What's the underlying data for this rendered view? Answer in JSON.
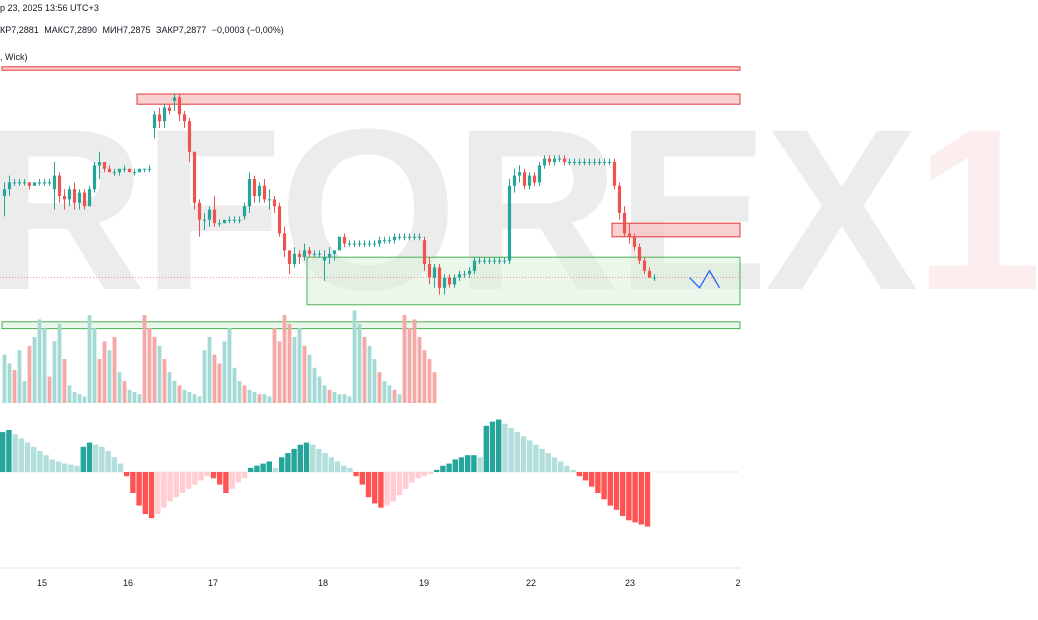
{
  "header": {
    "datetime": "р 23, 2025 13:56 UTC+3",
    "ohlc": [
      {
        "label": "КР",
        "value": "7,2881"
      },
      {
        "label": "МАКС",
        "value": "7,2890"
      },
      {
        "label": "МИН",
        "value": "7,2875"
      },
      {
        "label": "ЗАКР",
        "value": "7,2877"
      }
    ],
    "change": "−0,0003 (−0,00%)",
    "indicator_label": ", Wick)"
  },
  "watermark": {
    "text": "RFOREX",
    "accent": "1"
  },
  "colors": {
    "bull": "#26a69a",
    "bear": "#ef5350",
    "vol_bull": "#a5d9d4",
    "vol_bear": "#f4a9a7",
    "zone_red": "#f8c5c5",
    "zone_green": "#dff2df",
    "forecast": "#2962ff"
  },
  "chart_data": {
    "type": "candlestick",
    "x_axis_labels": [
      "15",
      "16",
      "17",
      "18",
      "19",
      "22",
      "23",
      "2"
    ],
    "grid": false,
    "price_range": [
      0,
      100
    ],
    "candles": [
      {
        "o": 60,
        "h": 64,
        "l": 54,
        "c": 62
      },
      {
        "o": 62,
        "h": 66,
        "l": 60,
        "c": 64
      },
      {
        "o": 64,
        "h": 65,
        "l": 63,
        "c": 64
      },
      {
        "o": 64,
        "h": 65,
        "l": 63,
        "c": 64
      },
      {
        "o": 64,
        "h": 65,
        "l": 63,
        "c": 64
      },
      {
        "o": 64,
        "h": 64,
        "l": 62,
        "c": 63
      },
      {
        "o": 63,
        "h": 64,
        "l": 63,
        "c": 64
      },
      {
        "o": 64,
        "h": 65,
        "l": 63,
        "c": 64
      },
      {
        "o": 64,
        "h": 65,
        "l": 63,
        "c": 64
      },
      {
        "o": 64,
        "h": 65,
        "l": 63,
        "c": 64
      },
      {
        "o": 62,
        "h": 70,
        "l": 56,
        "c": 66
      },
      {
        "o": 66,
        "h": 67,
        "l": 58,
        "c": 60
      },
      {
        "o": 60,
        "h": 62,
        "l": 56,
        "c": 59
      },
      {
        "o": 59,
        "h": 63,
        "l": 57,
        "c": 62
      },
      {
        "o": 62,
        "h": 64,
        "l": 56,
        "c": 58
      },
      {
        "o": 58,
        "h": 62,
        "l": 56,
        "c": 61
      },
      {
        "o": 61,
        "h": 62,
        "l": 56,
        "c": 57
      },
      {
        "o": 57,
        "h": 63,
        "l": 57,
        "c": 62
      },
      {
        "o": 62,
        "h": 70,
        "l": 61,
        "c": 69
      },
      {
        "o": 69,
        "h": 73,
        "l": 65,
        "c": 70
      },
      {
        "o": 70,
        "h": 70,
        "l": 67,
        "c": 68
      },
      {
        "o": 68,
        "h": 69,
        "l": 67,
        "c": 67
      },
      {
        "o": 67,
        "h": 68,
        "l": 66,
        "c": 67
      },
      {
        "o": 67,
        "h": 68,
        "l": 66,
        "c": 68
      },
      {
        "o": 68,
        "h": 69,
        "l": 67,
        "c": 68
      },
      {
        "o": 68,
        "h": 68,
        "l": 67,
        "c": 67
      },
      {
        "o": 67,
        "h": 68,
        "l": 66,
        "c": 67
      },
      {
        "o": 67,
        "h": 68,
        "l": 67,
        "c": 68
      },
      {
        "o": 68,
        "h": 68,
        "l": 67,
        "c": 68
      },
      {
        "o": 68,
        "h": 69,
        "l": 67,
        "c": 68
      },
      {
        "o": 80,
        "h": 85,
        "l": 77,
        "c": 84
      },
      {
        "o": 84,
        "h": 86,
        "l": 80,
        "c": 82
      },
      {
        "o": 82,
        "h": 87,
        "l": 80,
        "c": 86
      },
      {
        "o": 86,
        "h": 87,
        "l": 84,
        "c": 85
      },
      {
        "o": 88,
        "h": 90,
        "l": 85,
        "c": 89
      },
      {
        "o": 89,
        "h": 90,
        "l": 82,
        "c": 84
      },
      {
        "o": 84,
        "h": 85,
        "l": 80,
        "c": 82
      },
      {
        "o": 82,
        "h": 83,
        "l": 70,
        "c": 73
      },
      {
        "o": 73,
        "h": 73,
        "l": 56,
        "c": 58
      },
      {
        "o": 58,
        "h": 59,
        "l": 48,
        "c": 53
      },
      {
        "o": 53,
        "h": 55,
        "l": 50,
        "c": 53
      },
      {
        "o": 53,
        "h": 57,
        "l": 51,
        "c": 56
      },
      {
        "o": 56,
        "h": 60,
        "l": 51,
        "c": 52
      },
      {
        "o": 52,
        "h": 53,
        "l": 51,
        "c": 52
      },
      {
        "o": 52,
        "h": 53,
        "l": 52,
        "c": 53
      },
      {
        "o": 53,
        "h": 54,
        "l": 52,
        "c": 53
      },
      {
        "o": 53,
        "h": 54,
        "l": 52,
        "c": 53
      },
      {
        "o": 53,
        "h": 54,
        "l": 52,
        "c": 53
      },
      {
        "o": 54,
        "h": 58,
        "l": 53,
        "c": 57
      },
      {
        "o": 57,
        "h": 67,
        "l": 55,
        "c": 65
      },
      {
        "o": 65,
        "h": 66,
        "l": 58,
        "c": 60
      },
      {
        "o": 60,
        "h": 64,
        "l": 58,
        "c": 63
      },
      {
        "o": 63,
        "h": 65,
        "l": 58,
        "c": 59
      },
      {
        "o": 59,
        "h": 62,
        "l": 56,
        "c": 59
      },
      {
        "o": 59,
        "h": 60,
        "l": 55,
        "c": 57
      },
      {
        "o": 57,
        "h": 58,
        "l": 48,
        "c": 49
      },
      {
        "o": 49,
        "h": 51,
        "l": 42,
        "c": 44
      },
      {
        "o": 44,
        "h": 44,
        "l": 37,
        "c": 40
      },
      {
        "o": 40,
        "h": 45,
        "l": 39,
        "c": 43
      },
      {
        "o": 43,
        "h": 44,
        "l": 40,
        "c": 42
      },
      {
        "o": 42,
        "h": 46,
        "l": 41,
        "c": 44
      },
      {
        "o": 44,
        "h": 45,
        "l": 42,
        "c": 43
      },
      {
        "o": 43,
        "h": 44,
        "l": 42,
        "c": 43
      },
      {
        "o": 43,
        "h": 44,
        "l": 42,
        "c": 43
      },
      {
        "o": 41,
        "h": 44,
        "l": 35,
        "c": 42
      },
      {
        "o": 42,
        "h": 45,
        "l": 40,
        "c": 43
      },
      {
        "o": 43,
        "h": 44,
        "l": 41,
        "c": 44
      },
      {
        "o": 44,
        "h": 48,
        "l": 44,
        "c": 48
      },
      {
        "o": 48,
        "h": 49,
        "l": 45,
        "c": 46
      },
      {
        "o": 46,
        "h": 47,
        "l": 45,
        "c": 46
      },
      {
        "o": 46,
        "h": 47,
        "l": 45,
        "c": 46
      },
      {
        "o": 46,
        "h": 47,
        "l": 45,
        "c": 46
      },
      {
        "o": 46,
        "h": 47,
        "l": 45,
        "c": 46
      },
      {
        "o": 46,
        "h": 47,
        "l": 45,
        "c": 46
      },
      {
        "o": 46,
        "h": 47,
        "l": 45,
        "c": 46
      },
      {
        "o": 46,
        "h": 48,
        "l": 45,
        "c": 47
      },
      {
        "o": 47,
        "h": 48,
        "l": 46,
        "c": 47
      },
      {
        "o": 47,
        "h": 48,
        "l": 46,
        "c": 47
      },
      {
        "o": 47,
        "h": 49,
        "l": 46,
        "c": 48
      },
      {
        "o": 48,
        "h": 49,
        "l": 47,
        "c": 48
      },
      {
        "o": 48,
        "h": 49,
        "l": 47,
        "c": 48
      },
      {
        "o": 48,
        "h": 49,
        "l": 47,
        "c": 48
      },
      {
        "o": 48,
        "h": 49,
        "l": 47,
        "c": 48
      },
      {
        "o": 48,
        "h": 49,
        "l": 47,
        "c": 48
      },
      {
        "o": 47,
        "h": 48,
        "l": 38,
        "c": 40
      },
      {
        "o": 40,
        "h": 42,
        "l": 34,
        "c": 36
      },
      {
        "o": 36,
        "h": 40,
        "l": 33,
        "c": 39
      },
      {
        "o": 39,
        "h": 40,
        "l": 31,
        "c": 33
      },
      {
        "o": 33,
        "h": 37,
        "l": 31,
        "c": 36
      },
      {
        "o": 36,
        "h": 37,
        "l": 33,
        "c": 34
      },
      {
        "o": 34,
        "h": 37,
        "l": 33,
        "c": 36
      },
      {
        "o": 36,
        "h": 38,
        "l": 35,
        "c": 37
      },
      {
        "o": 37,
        "h": 38,
        "l": 36,
        "c": 37
      },
      {
        "o": 37,
        "h": 39,
        "l": 36,
        "c": 38
      },
      {
        "o": 38,
        "h": 42,
        "l": 37,
        "c": 41
      },
      {
        "o": 41,
        "h": 42,
        "l": 40,
        "c": 41
      },
      {
        "o": 41,
        "h": 42,
        "l": 40,
        "c": 41
      },
      {
        "o": 41,
        "h": 42,
        "l": 40,
        "c": 41
      },
      {
        "o": 41,
        "h": 42,
        "l": 40,
        "c": 41
      },
      {
        "o": 41,
        "h": 42,
        "l": 40,
        "c": 41
      },
      {
        "o": 41,
        "h": 42,
        "l": 40,
        "c": 41
      },
      {
        "o": 41,
        "h": 65,
        "l": 40,
        "c": 63
      },
      {
        "o": 63,
        "h": 68,
        "l": 61,
        "c": 66
      },
      {
        "o": 66,
        "h": 69,
        "l": 64,
        "c": 67
      },
      {
        "o": 67,
        "h": 68,
        "l": 62,
        "c": 63
      },
      {
        "o": 63,
        "h": 67,
        "l": 62,
        "c": 66
      },
      {
        "o": 66,
        "h": 67,
        "l": 63,
        "c": 64
      },
      {
        "o": 64,
        "h": 70,
        "l": 63,
        "c": 69
      },
      {
        "o": 69,
        "h": 72,
        "l": 68,
        "c": 71
      },
      {
        "o": 71,
        "h": 72,
        "l": 69,
        "c": 70
      },
      {
        "o": 70,
        "h": 72,
        "l": 69,
        "c": 71
      },
      {
        "o": 71,
        "h": 72,
        "l": 70,
        "c": 71
      },
      {
        "o": 71,
        "h": 72,
        "l": 69,
        "c": 70
      },
      {
        "o": 70,
        "h": 71,
        "l": 69,
        "c": 70
      },
      {
        "o": 70,
        "h": 71,
        "l": 69,
        "c": 70
      },
      {
        "o": 70,
        "h": 71,
        "l": 69,
        "c": 70
      },
      {
        "o": 70,
        "h": 71,
        "l": 69,
        "c": 70
      },
      {
        "o": 70,
        "h": 71,
        "l": 69,
        "c": 70
      },
      {
        "o": 70,
        "h": 71,
        "l": 69,
        "c": 70
      },
      {
        "o": 70,
        "h": 71,
        "l": 69,
        "c": 70
      },
      {
        "o": 70,
        "h": 71,
        "l": 69,
        "c": 70
      },
      {
        "o": 70,
        "h": 71,
        "l": 69,
        "c": 70
      },
      {
        "o": 70,
        "h": 71,
        "l": 62,
        "c": 63
      },
      {
        "o": 63,
        "h": 64,
        "l": 53,
        "c": 55
      },
      {
        "o": 55,
        "h": 57,
        "l": 48,
        "c": 49
      },
      {
        "o": 49,
        "h": 52,
        "l": 46,
        "c": 48
      },
      {
        "o": 48,
        "h": 49,
        "l": 44,
        "c": 45
      },
      {
        "o": 45,
        "h": 46,
        "l": 40,
        "c": 41
      },
      {
        "o": 41,
        "h": 42,
        "l": 37,
        "c": 38
      },
      {
        "o": 38,
        "h": 39,
        "l": 36,
        "c": 36
      },
      {
        "o": 36,
        "h": 37,
        "l": 35,
        "c": 36
      }
    ],
    "volume": [
      {
        "v": 22,
        "up": true
      },
      {
        "v": 18,
        "up": true
      },
      {
        "v": 15,
        "up": false
      },
      {
        "v": 24,
        "up": true
      },
      {
        "v": 10,
        "up": true
      },
      {
        "v": 26,
        "up": false
      },
      {
        "v": 30,
        "up": true
      },
      {
        "v": 38,
        "up": true
      },
      {
        "v": 34,
        "up": true
      },
      {
        "v": 12,
        "up": false
      },
      {
        "v": 28,
        "up": true
      },
      {
        "v": 36,
        "up": true
      },
      {
        "v": 20,
        "up": false
      },
      {
        "v": 8,
        "up": true
      },
      {
        "v": 5,
        "up": true
      },
      {
        "v": 4,
        "up": true
      },
      {
        "v": 3,
        "up": true
      },
      {
        "v": 40,
        "up": true
      },
      {
        "v": 34,
        "up": true
      },
      {
        "v": 20,
        "up": false
      },
      {
        "v": 28,
        "up": false
      },
      {
        "v": 24,
        "up": true
      },
      {
        "v": 30,
        "up": false
      },
      {
        "v": 14,
        "up": true
      },
      {
        "v": 10,
        "up": false
      },
      {
        "v": 6,
        "up": true
      },
      {
        "v": 5,
        "up": true
      },
      {
        "v": 4,
        "up": true
      },
      {
        "v": 40,
        "up": false
      },
      {
        "v": 34,
        "up": false
      },
      {
        "v": 30,
        "up": false
      },
      {
        "v": 26,
        "up": true
      },
      {
        "v": 20,
        "up": false
      },
      {
        "v": 14,
        "up": true
      },
      {
        "v": 10,
        "up": true
      },
      {
        "v": 8,
        "up": false
      },
      {
        "v": 6,
        "up": true
      },
      {
        "v": 5,
        "up": true
      },
      {
        "v": 4,
        "up": true
      },
      {
        "v": 3,
        "up": true
      },
      {
        "v": 24,
        "up": true
      },
      {
        "v": 30,
        "up": true
      },
      {
        "v": 22,
        "up": false
      },
      {
        "v": 18,
        "up": false
      },
      {
        "v": 28,
        "up": true
      },
      {
        "v": 34,
        "up": true
      },
      {
        "v": 16,
        "up": true
      },
      {
        "v": 10,
        "up": true
      },
      {
        "v": 8,
        "up": false
      },
      {
        "v": 6,
        "up": true
      },
      {
        "v": 5,
        "up": true
      },
      {
        "v": 4,
        "up": false
      },
      {
        "v": 4,
        "up": true
      },
      {
        "v": 3,
        "up": true
      },
      {
        "v": 34,
        "up": false
      },
      {
        "v": 28,
        "up": false
      },
      {
        "v": 40,
        "up": false
      },
      {
        "v": 36,
        "up": false
      },
      {
        "v": 30,
        "up": true
      },
      {
        "v": 34,
        "up": true
      },
      {
        "v": 26,
        "up": false
      },
      {
        "v": 22,
        "up": true
      },
      {
        "v": 16,
        "up": true
      },
      {
        "v": 12,
        "up": true
      },
      {
        "v": 8,
        "up": true
      },
      {
        "v": 6,
        "up": false
      },
      {
        "v": 5,
        "up": true
      },
      {
        "v": 4,
        "up": true
      },
      {
        "v": 4,
        "up": true
      },
      {
        "v": 3,
        "up": true
      },
      {
        "v": 42,
        "up": true
      },
      {
        "v": 36,
        "up": true
      },
      {
        "v": 30,
        "up": false
      },
      {
        "v": 26,
        "up": true
      },
      {
        "v": 20,
        "up": true
      },
      {
        "v": 14,
        "up": false
      },
      {
        "v": 10,
        "up": true
      },
      {
        "v": 8,
        "up": true
      },
      {
        "v": 6,
        "up": false
      },
      {
        "v": 4,
        "up": true
      },
      {
        "v": 40,
        "up": false
      },
      {
        "v": 34,
        "up": false
      },
      {
        "v": 38,
        "up": false
      },
      {
        "v": 30,
        "up": false
      },
      {
        "v": 24,
        "up": false
      },
      {
        "v": 20,
        "up": false
      },
      {
        "v": 14,
        "up": false
      }
    ],
    "oscillator": [
      38,
      40,
      36,
      32,
      28,
      24,
      20,
      16,
      12,
      10,
      8,
      7,
      6,
      24,
      28,
      26,
      24,
      20,
      14,
      8,
      -4,
      -20,
      -32,
      -40,
      -44,
      -40,
      -34,
      -28,
      -24,
      -20,
      -16,
      -12,
      -8,
      -4,
      -6,
      -12,
      -20,
      -16,
      -10,
      -6,
      4,
      6,
      8,
      10,
      4,
      14,
      18,
      22,
      26,
      28,
      26,
      22,
      18,
      14,
      10,
      6,
      4,
      -4,
      -12,
      -24,
      -30,
      -34,
      -32,
      -28,
      -22,
      -16,
      -10,
      -6,
      -4,
      -2,
      2,
      6,
      8,
      12,
      14,
      16,
      16,
      14,
      44,
      48,
      50,
      46,
      42,
      38,
      34,
      30,
      26,
      22,
      18,
      14,
      10,
      6,
      2,
      -4,
      -8,
      -14,
      -20,
      -26,
      -32,
      -36,
      -42,
      -46,
      -48,
      -50,
      -52
    ],
    "zones": [
      {
        "type": "resistance",
        "from_candle": 0,
        "price_top": 98,
        "price_bottom": 97
      },
      {
        "type": "resistance",
        "from_candle": 27,
        "price_top": 90,
        "price_bottom": 87
      },
      {
        "type": "resistance",
        "from_candle": 122,
        "price_top": 52,
        "price_bottom": 48
      },
      {
        "type": "demand",
        "from_candle": 61,
        "price_top": 42,
        "price_bottom": 28
      },
      {
        "type": "demand",
        "from_candle": 0,
        "price_top": 23,
        "price_bottom": 21
      }
    ],
    "forecast_path": [
      [
        137,
        36
      ],
      [
        139,
        33
      ],
      [
        141,
        38
      ],
      [
        143,
        33
      ]
    ]
  }
}
